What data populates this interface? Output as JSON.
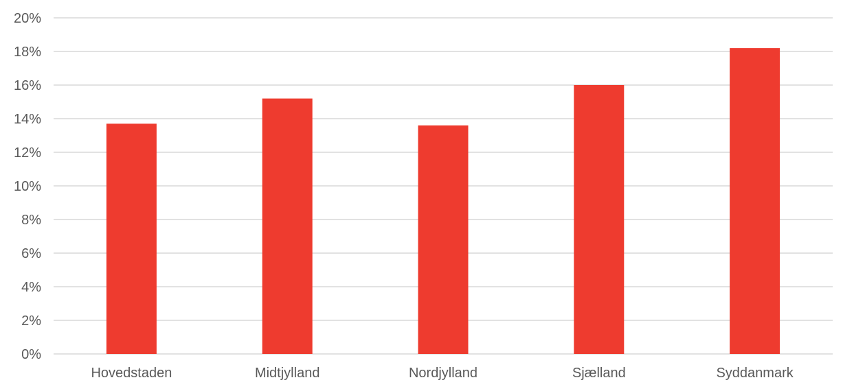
{
  "chart_data": {
    "type": "bar",
    "categories": [
      "Hovedstaden",
      "Midtjylland",
      "Nordjylland",
      "Sjælland",
      "Syddanmark"
    ],
    "values": [
      13.7,
      15.2,
      13.6,
      16.0,
      18.2
    ],
    "ylim": [
      0,
      20
    ],
    "yticks": [
      0,
      2,
      4,
      6,
      8,
      10,
      12,
      14,
      16,
      18,
      20
    ],
    "ytick_labels": [
      "0%",
      "2%",
      "4%",
      "6%",
      "8%",
      "10%",
      "12%",
      "14%",
      "16%",
      "18%",
      "20%"
    ],
    "grid": true,
    "bar_color": "#ee3b2f",
    "grid_color": "#d9d9d9",
    "text_color": "#595959"
  }
}
